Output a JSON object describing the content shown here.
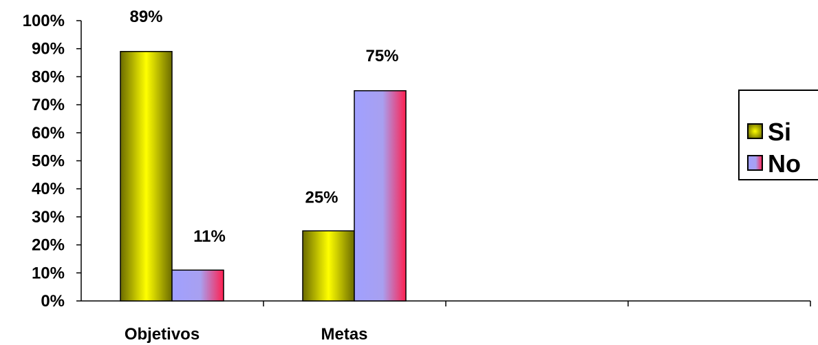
{
  "chart_data": {
    "type": "bar",
    "categories": [
      "Objetivos",
      "Metas",
      "",
      ""
    ],
    "series": [
      {
        "name": "Si",
        "values": [
          89,
          25,
          null,
          null
        ],
        "labels": [
          "89%",
          "25%",
          "",
          ""
        ]
      },
      {
        "name": "No",
        "values": [
          11,
          75,
          null,
          null
        ],
        "labels": [
          "11%",
          "75%",
          "",
          ""
        ]
      }
    ],
    "ylim": [
      0,
      100
    ],
    "yticks": [
      "0%",
      "10%",
      "20%",
      "30%",
      "40%",
      "50%",
      "60%",
      "70%",
      "80%",
      "90%",
      "100%"
    ],
    "grid": false,
    "legend_position": "right",
    "colors": {
      "si_edge": "#6b6b00",
      "si_center": "#ffff00",
      "no_left": "#a0a0ff",
      "no_right": "#ff2050"
    }
  }
}
